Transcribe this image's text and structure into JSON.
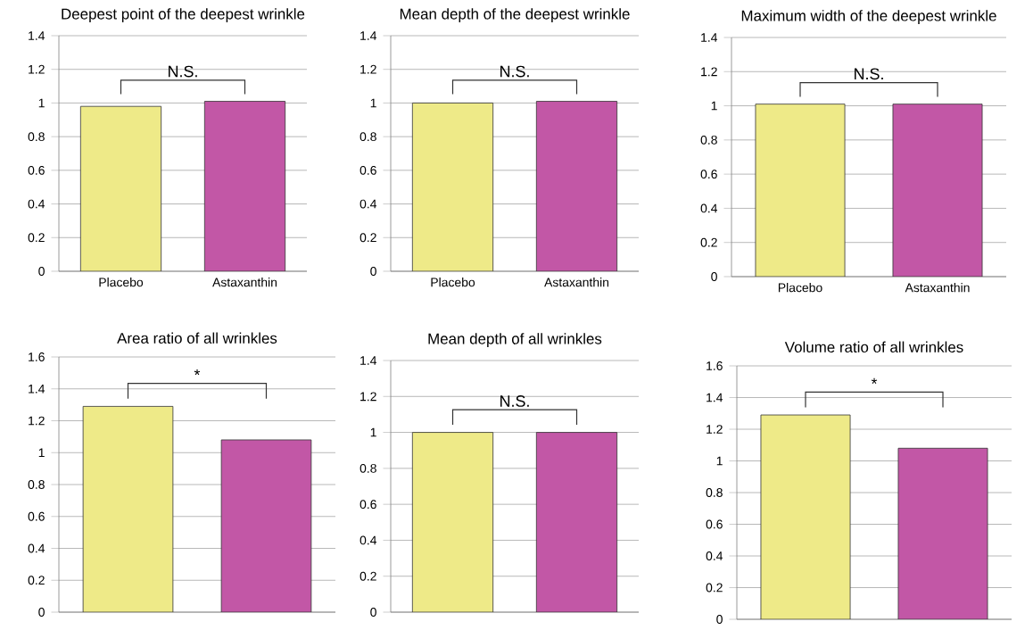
{
  "chart_data": [
    {
      "type": "bar",
      "title": "Deepest point of the deepest wrinkle",
      "categories": [
        "Placebo",
        "Astaxanthin"
      ],
      "values": [
        0.98,
        1.01
      ],
      "colors": [
        "#eeea88",
        "#c257a6"
      ],
      "ylim": [
        0,
        1.4
      ],
      "yticks": [
        0,
        0.2,
        0.4,
        0.6,
        0.8,
        1,
        1.2,
        1.4
      ],
      "grid": "y",
      "annotations": [
        "N.S."
      ]
    },
    {
      "type": "bar",
      "title": "Mean depth of the deepest wrinkle",
      "categories": [
        "Placebo",
        "Astaxanthin"
      ],
      "values": [
        1.0,
        1.01
      ],
      "colors": [
        "#eeea88",
        "#c257a6"
      ],
      "ylim": [
        0,
        1.4
      ],
      "yticks": [
        0,
        0.2,
        0.4,
        0.6,
        0.8,
        1,
        1.2,
        1.4
      ],
      "grid": "y",
      "annotations": [
        "N.S."
      ]
    },
    {
      "type": "bar",
      "title": "Maximum width of the deepest wrinkle",
      "categories": [
        "Placebo",
        "Astaxanthin"
      ],
      "values": [
        1.01,
        1.01
      ],
      "colors": [
        "#eeea88",
        "#c257a6"
      ],
      "ylim": [
        0,
        1.4
      ],
      "yticks": [
        0,
        0.2,
        0.4,
        0.6,
        0.8,
        1,
        1.2,
        1.4
      ],
      "grid": "y",
      "annotations": [
        "N.S."
      ]
    },
    {
      "type": "bar",
      "title": "Area ratio of all wrinkles",
      "categories": [
        null,
        null
      ],
      "values": [
        1.29,
        1.08
      ],
      "colors": [
        "#eeea88",
        "#c257a6"
      ],
      "ylim": [
        0,
        1.6
      ],
      "yticks": [
        0,
        0.2,
        0.4,
        0.6,
        0.8,
        1,
        1.2,
        1.4,
        1.6
      ],
      "grid": "y",
      "annotations": [
        "*"
      ]
    },
    {
      "type": "bar",
      "title": "Mean depth of all wrinkles",
      "categories": [
        null,
        null
      ],
      "values": [
        1.0,
        1.0
      ],
      "colors": [
        "#eeea88",
        "#c257a6"
      ],
      "ylim": [
        0,
        1.4
      ],
      "yticks": [
        0,
        0.2,
        0.4,
        0.6,
        0.8,
        1,
        1.2,
        1.4
      ],
      "grid": "y",
      "annotations": [
        "N.S."
      ]
    },
    {
      "type": "bar",
      "title": "Volume ratio of all wrinkles",
      "categories": [
        null,
        null
      ],
      "values": [
        1.29,
        1.08
      ],
      "colors": [
        "#eeea88",
        "#c257a6"
      ],
      "ylim": [
        0,
        1.6
      ],
      "yticks": [
        0,
        0.2,
        0.4,
        0.6,
        0.8,
        1,
        1.2,
        1.4,
        1.6
      ],
      "grid": "y",
      "annotations": [
        "*"
      ]
    }
  ]
}
